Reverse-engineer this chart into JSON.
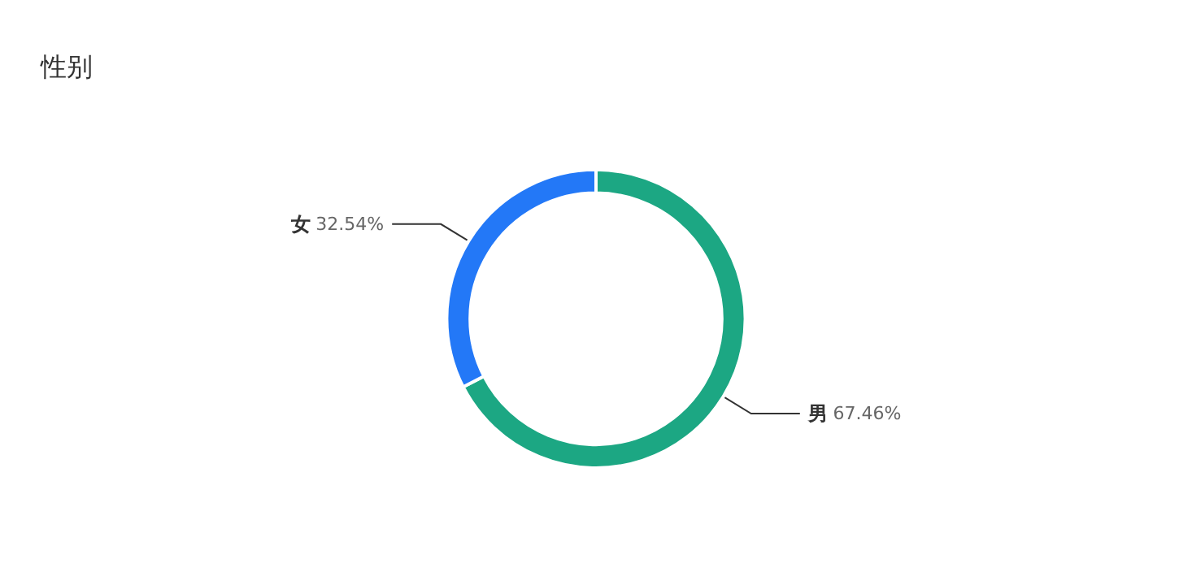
{
  "chart_data": {
    "type": "donut",
    "title": "性别",
    "categories": [
      "男",
      "女"
    ],
    "values": [
      67.46,
      32.54
    ],
    "colors": [
      "#1ca783",
      "#2378f7"
    ],
    "value_labels": [
      "67.46%",
      "32.54%"
    ],
    "legend": false
  }
}
